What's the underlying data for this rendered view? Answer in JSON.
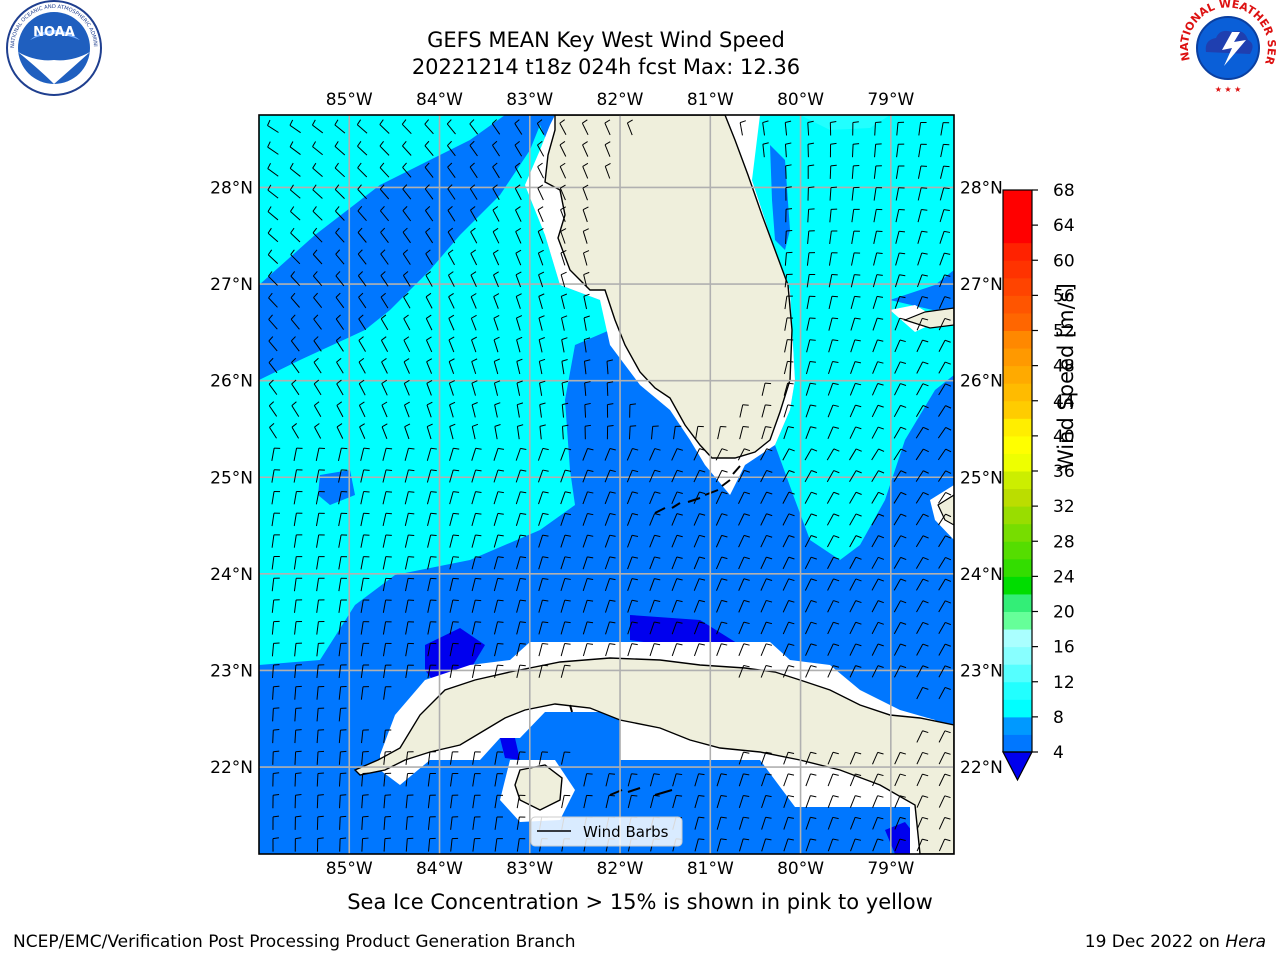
{
  "header": {
    "title_line1": "GEFS MEAN Key West Wind Speed",
    "title_line2": "20221214 t18z 024h fcst   Max: 12.36"
  },
  "logos": {
    "left": {
      "name": "noaa-logo",
      "text": "NOAA",
      "ring_text": "NATIONAL OCEANIC AND ATMOSPHERIC ADMINISTRATION · U.S. DEPARTMENT OF COMMERCE"
    },
    "right": {
      "name": "nws-logo",
      "ring_text": "NATIONAL WEATHER SERVICE"
    }
  },
  "map": {
    "projection": "lat-lon",
    "lon_range": [
      -86.0,
      -78.3
    ],
    "lat_range": [
      21.1,
      28.75
    ],
    "lon_ticks": [
      "85°W",
      "84°W",
      "83°W",
      "82°W",
      "81°W",
      "80°W",
      "79°W"
    ],
    "lat_ticks": [
      "28°N",
      "27°N",
      "26°N",
      "25°N",
      "24°N",
      "23°N",
      "22°N"
    ],
    "gridlines": true,
    "land_color": "#efefdc",
    "legend": {
      "label": "Wind Barbs",
      "placement": "bottom-center"
    }
  },
  "colorbar": {
    "label": "Wind Speed [m/s]",
    "ticks": [
      "4",
      "8",
      "12",
      "16",
      "20",
      "24",
      "28",
      "32",
      "36",
      "40",
      "44",
      "48",
      "52",
      "56",
      "60",
      "64",
      "68"
    ],
    "levels": [
      4,
      6,
      8,
      10,
      12,
      14,
      16,
      18,
      20,
      22,
      24,
      26,
      28,
      30,
      32,
      34,
      36,
      38,
      40,
      42,
      44,
      46,
      48,
      50,
      52,
      54,
      56,
      58,
      60,
      62,
      64,
      66,
      68
    ],
    "colors": [
      "#0077ff",
      "#0099ff",
      "#00ffff",
      "#22ffff",
      "#55ffff",
      "#88ffff",
      "#aaffff",
      "#66ff99",
      "#33ee77",
      "#00dd00",
      "#33dd00",
      "#55dd00",
      "#77dd00",
      "#99dd00",
      "#bbdd00",
      "#ccee00",
      "#eeff00",
      "#ffff00",
      "#ffee00",
      "#ffcc00",
      "#ffbb00",
      "#ffaa00",
      "#ff9900",
      "#ff8800",
      "#ff6600",
      "#ff5500",
      "#ff4400",
      "#ff3300",
      "#ff2200",
      "#ff0000",
      "#ff0000",
      "#ff0000"
    ],
    "extend_color": "#0000ee"
  },
  "footer": {
    "note": "Sea Ice Concentration > 15% is shown in pink to yellow",
    "left": "NCEP/EMC/Verification Post Processing Product Generation Branch",
    "right_prefix": "19 Dec 2022 on ",
    "right_italic": "Hera"
  },
  "colors": {
    "wind_4_8": "#0077ff",
    "wind_8_12": "#00ffff",
    "wind_below_4": "#0000ee",
    "land": "#efefdc",
    "grid": "#b0b0b0"
  }
}
